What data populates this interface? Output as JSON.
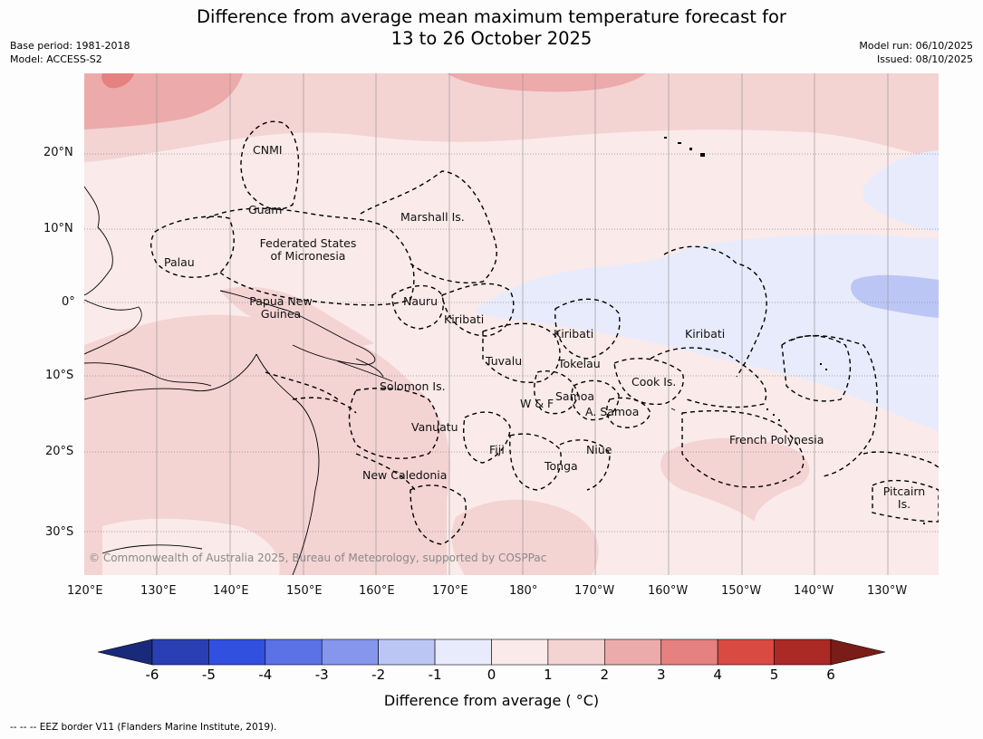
{
  "title": {
    "line1": "Difference from average mean maximum temperature forecast for",
    "line2": "13 to 26 October 2025"
  },
  "meta_left": {
    "base_period": "Base period: 1981-2018",
    "model": "Model: ACCESS-S2"
  },
  "meta_right": {
    "model_run": "Model run: 06/10/2025",
    "issued": "Issued: 08/10/2025"
  },
  "map": {
    "lat_labels": [
      "20°N",
      "10°N",
      "0°",
      "10°S",
      "20°S",
      "30°S"
    ],
    "lon_labels": [
      "120°E",
      "130°E",
      "140°E",
      "150°E",
      "160°E",
      "170°E",
      "180°",
      "170°W",
      "160°W",
      "150°W",
      "140°W",
      "130°W"
    ],
    "region_labels": {
      "cnmi": "CNMI",
      "guam": "Guam",
      "marshall": "Marshall Is.",
      "fsm_1": "Federated States",
      "fsm_2": "of Micronesia",
      "palau": "Palau",
      "png_1": "Papua New",
      "png_2": "Guinea",
      "nauru": "Nauru",
      "kiribati_w": "Kiribati",
      "kiribati_c": "Kiribati",
      "kiribati_e": "Kiribati",
      "tuvalu": "Tuvalu",
      "tokelau": "Tokelau",
      "cook": "Cook Is.",
      "solomon": "Solomon Is.",
      "samoa": "Samoa",
      "wf": "W & F",
      "asamoa": "A. Samoa",
      "vanuatu": "Vanuatu",
      "fiji": "Fiji",
      "niue": "Niue",
      "tonga": "Tonga",
      "new_caledonia": "New Caledonia",
      "french_polynesia": "French Polynesia",
      "pitcairn_1": "Pitcairn",
      "pitcairn_2": "Is."
    },
    "copyright": "© Commonwealth of Australia 2025, Bureau of Meteorology, supported by COSPPac"
  },
  "colorbar": {
    "ticks": [
      "-6",
      "-5",
      "-4",
      "-3",
      "-2",
      "-1",
      "0",
      "1",
      "2",
      "3",
      "4",
      "5",
      "6"
    ],
    "colors": {
      "under": "#1a2a7a",
      "bins": [
        "#2a3fb3",
        "#3150e0",
        "#5a72e6",
        "#8596ec",
        "#bcc6f4",
        "#e8ebfb",
        "#fbeaea",
        "#f4d3d3",
        "#ecaaaa",
        "#e5817f",
        "#d94a42",
        "#ac2a24"
      ],
      "over": "#7a1c18"
    },
    "label": "Difference from average ( °C)"
  },
  "footer": "--  --  -- EEZ border V11 (Flanders Marine Institute, 2019)."
}
